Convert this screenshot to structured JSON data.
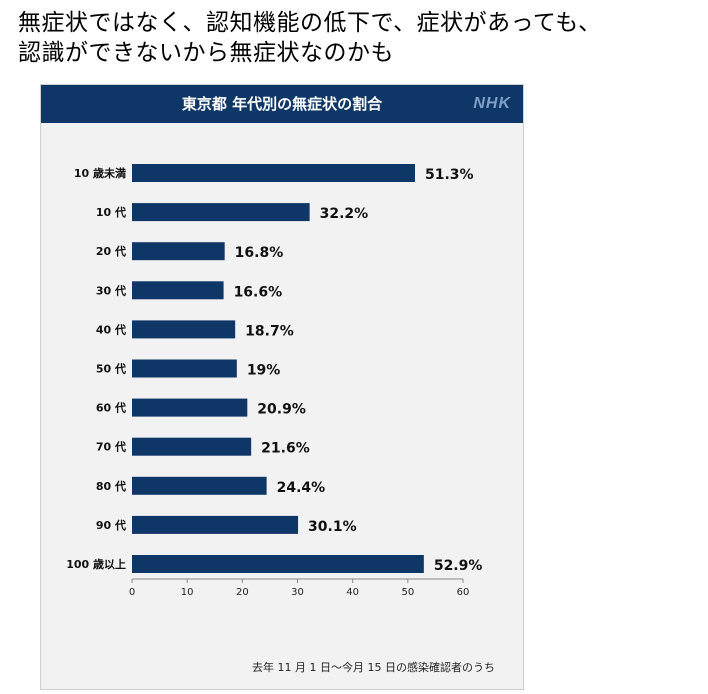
{
  "caption": {
    "line1": "無症状ではなく、認知機能の低下で、症状があっても、",
    "line2": "認識ができないから無症状なのかも"
  },
  "card": {
    "logo": "NHK",
    "footnote": "去年 11 月 1 日～今月 15 日の感染確認者のうち"
  },
  "colors": {
    "bar": "#0e3666",
    "header": "#0e3666",
    "card_bg": "#f2f2f2"
  },
  "chart_data": {
    "type": "bar",
    "orientation": "horizontal",
    "title": "東京都 年代別の無症状の割合",
    "categories": [
      "10 歳未満",
      "10 代",
      "20 代",
      "30 代",
      "40 代",
      "50 代",
      "60 代",
      "70 代",
      "80 代",
      "90 代",
      "100 歳以上"
    ],
    "values": [
      51.3,
      32.2,
      16.8,
      16.6,
      18.7,
      19,
      20.9,
      21.6,
      24.4,
      30.1,
      52.9
    ],
    "value_labels": [
      "51.3%",
      "32.2%",
      "16.8%",
      "16.6%",
      "18.7%",
      "19%",
      "20.9%",
      "21.6%",
      "24.4%",
      "30.1%",
      "52.9%"
    ],
    "xlim": [
      0,
      60
    ],
    "xticks": [
      0,
      10,
      20,
      30,
      40,
      50,
      60
    ],
    "grid": false,
    "legend": "none"
  }
}
